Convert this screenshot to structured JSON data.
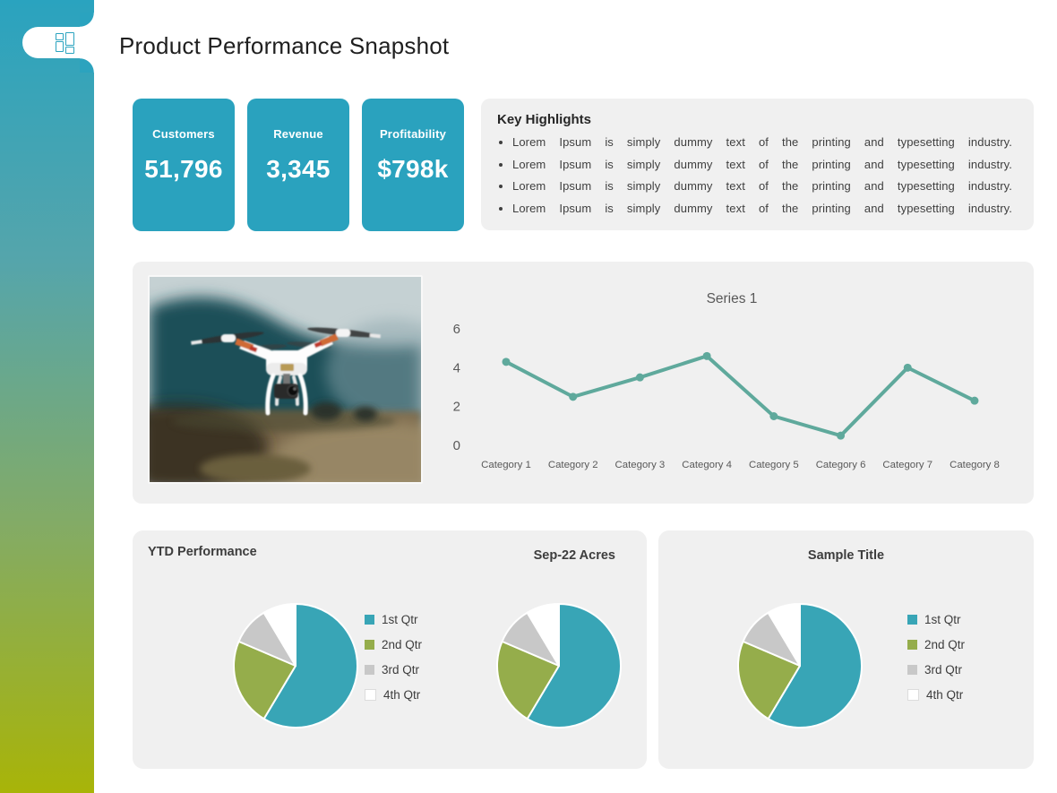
{
  "slide": {
    "title": "Product Performance Snapshot"
  },
  "colors": {
    "accent_teal": "#2AA2BE",
    "accent_olive": "#A8B408",
    "panel_bg": "#F0F0F0",
    "line_series": "#5FA99C",
    "pie_teal": "#38A5B6",
    "pie_green": "#95AD4B",
    "pie_gray": "#C8C8C8",
    "pie_white": "#FFFFFF",
    "axis_text": "#595959"
  },
  "kpis": [
    {
      "label": "Customers",
      "value": "51,796"
    },
    {
      "label": "Revenue",
      "value": "3,345"
    },
    {
      "label": "Profitability",
      "value": "$798k"
    }
  ],
  "highlights": {
    "title": "Key Highlights",
    "bullets": [
      "Lorem Ipsum is simply dummy text of the printing and typesetting industry.",
      "Lorem Ipsum is simply dummy text of the printing and typesetting industry.",
      "Lorem Ipsum is simply dummy text of the printing and typesetting industry.",
      "Lorem Ipsum is simply dummy text of the printing and typesetting industry."
    ]
  },
  "photo": {
    "description": "drone quadcopter flying over blurred field with mountain backdrop"
  },
  "chart_data": [
    {
      "type": "line",
      "title": "Series 1",
      "categories": [
        "Category 1",
        "Category 2",
        "Category 3",
        "Category 4",
        "Category 5",
        "Category 6",
        "Category 7",
        "Category 8"
      ],
      "values": [
        4.3,
        2.5,
        3.5,
        4.6,
        1.5,
        0.5,
        4.0,
        2.3
      ],
      "xlabel": "",
      "ylabel": "",
      "ylim": [
        0,
        6
      ],
      "yticks": [
        0,
        2,
        4,
        6
      ],
      "grid": false,
      "legend_position": "none",
      "line_color": "#5FA99C"
    },
    {
      "type": "pie",
      "title": "YTD Performance",
      "categories": [
        "1st Qtr",
        "2nd Qtr",
        "3rd Qtr",
        "4th Qtr"
      ],
      "values": [
        8.2,
        3.2,
        1.4,
        1.2
      ],
      "colors": [
        "#38A5B6",
        "#95AD4B",
        "#C8C8C8",
        "#FFFFFF"
      ],
      "legend_position": "right"
    },
    {
      "type": "pie",
      "title": "Sep-22 Acres",
      "categories": [
        "1st Qtr",
        "2nd Qtr",
        "3rd Qtr",
        "4th Qtr"
      ],
      "values": [
        8.2,
        3.2,
        1.4,
        1.2
      ],
      "colors": [
        "#38A5B6",
        "#95AD4B",
        "#C8C8C8",
        "#FFFFFF"
      ],
      "legend_position": "none"
    },
    {
      "type": "pie",
      "title": "Sample Title",
      "categories": [
        "1st Qtr",
        "2nd Qtr",
        "3rd Qtr",
        "4th Qtr"
      ],
      "values": [
        8.2,
        3.2,
        1.4,
        1.2
      ],
      "colors": [
        "#38A5B6",
        "#95AD4B",
        "#C8C8C8",
        "#FFFFFF"
      ],
      "legend_position": "right"
    }
  ]
}
